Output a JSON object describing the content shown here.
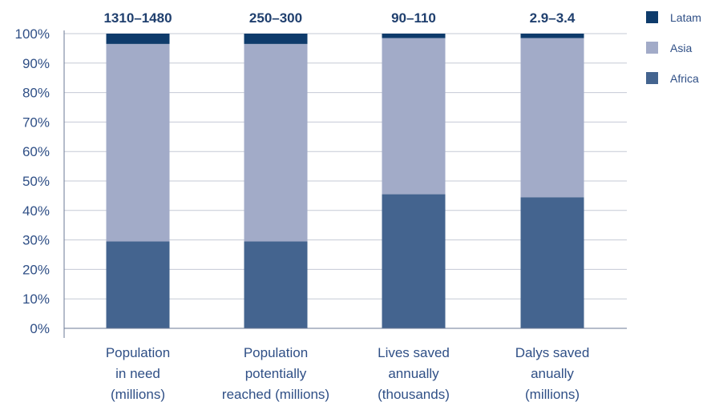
{
  "chart_data": {
    "type": "bar",
    "stacked": true,
    "categories": [
      [
        "Population",
        "in need",
        "(millions)"
      ],
      [
        "Population",
        "potentially",
        "reached (millions)"
      ],
      [
        "Lives saved",
        "annually",
        "(thousands)"
      ],
      [
        "Dalys saved",
        "anually",
        "(millions)"
      ]
    ],
    "top_labels": [
      "1310–1480",
      "250–300",
      "90–110",
      "2.9–3.4"
    ],
    "series": [
      {
        "name": "Africa",
        "color": "#44648f",
        "values": [
          29.5,
          29.5,
          45.5,
          44.5
        ]
      },
      {
        "name": "Asia",
        "color": "#a2abc8",
        "values": [
          67,
          67,
          53,
          54
        ]
      },
      {
        "name": "Latam",
        "color": "#0e3b6b",
        "values": [
          3.5,
          3.5,
          1.5,
          1.5
        ]
      }
    ],
    "legend_order": [
      "Latam",
      "Asia",
      "Africa"
    ],
    "legend_position": "top-right",
    "ylim": [
      0,
      100
    ],
    "yticks": [
      "0%",
      "10%",
      "20%",
      "30%",
      "40%",
      "50%",
      "60%",
      "70%",
      "80%",
      "90%",
      "100%"
    ],
    "grid": true
  }
}
